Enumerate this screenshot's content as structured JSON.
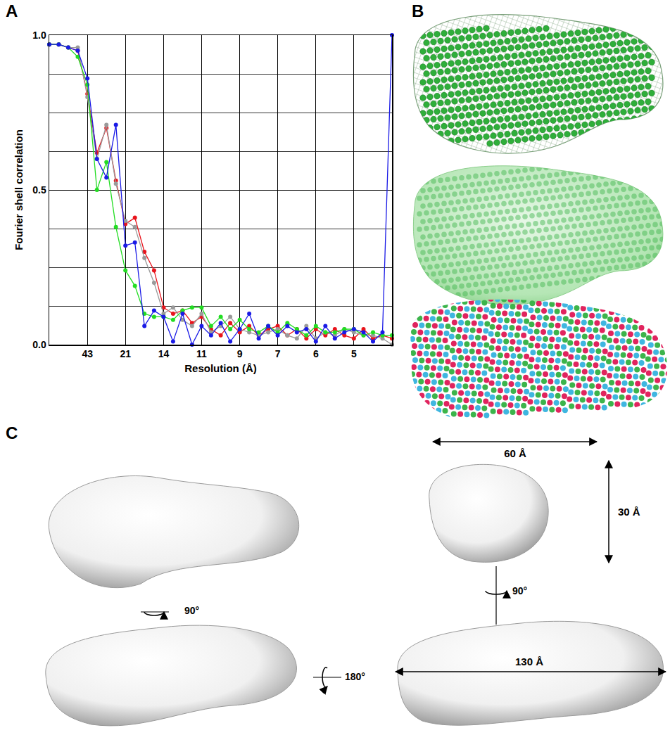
{
  "chart_data": {
    "type": "line",
    "xlabel": "Resolution (Å)",
    "ylabel": "Fourier shell correlation",
    "x": [
      0,
      0.0058,
      0.0116,
      0.0174,
      0.0233,
      0.0291,
      0.0349,
      0.0407,
      0.0465,
      0.0523,
      0.0581,
      0.064,
      0.0698,
      0.0756,
      0.0814,
      0.0872,
      0.093,
      0.0988,
      0.1047,
      0.1105,
      0.1163,
      0.1221,
      0.1279,
      0.1337,
      0.1395,
      0.1454,
      0.1512,
      0.157,
      0.1628,
      0.1686,
      0.1744,
      0.1802,
      0.186,
      0.1919,
      0.1977,
      0.2035,
      0.2093
    ],
    "series": [
      {
        "color": "#e8141c",
        "values": [
          0.97,
          0.97,
          0.96,
          0.95,
          0.81,
          0.62,
          0.7,
          0.53,
          0.39,
          0.41,
          0.3,
          0.24,
          0.12,
          0.1,
          0.11,
          0.07,
          0.09,
          0.05,
          0.03,
          0.07,
          0.04,
          0.06,
          0.03,
          0.05,
          0.06,
          0.03,
          0.05,
          0.02,
          0.05,
          0.03,
          0.05,
          0.03,
          0.02,
          0.05,
          0.02,
          0.03,
          0.02
        ]
      },
      {
        "color": "#9a9a9a",
        "values": [
          0.97,
          0.97,
          0.96,
          0.96,
          0.8,
          0.6,
          0.71,
          0.52,
          0.4,
          0.38,
          0.28,
          0.2,
          0.1,
          0.12,
          0.08,
          0.06,
          0.1,
          0.04,
          0.06,
          0.09,
          0.05,
          0.04,
          0.03,
          0.04,
          0.05,
          0.03,
          0.02,
          0.06,
          0.02,
          0.04,
          0.03,
          0.05,
          0.04,
          0.03,
          0.03,
          0.02,
          0.0
        ]
      },
      {
        "color": "#22dd22",
        "values": [
          0.97,
          0.97,
          0.96,
          0.93,
          0.84,
          0.5,
          0.59,
          0.38,
          0.24,
          0.19,
          0.1,
          0.09,
          0.09,
          0.08,
          0.11,
          0.12,
          0.12,
          0.06,
          0.09,
          0.05,
          0.08,
          0.05,
          0.04,
          0.06,
          0.04,
          0.07,
          0.05,
          0.03,
          0.06,
          0.04,
          0.04,
          0.05,
          0.05,
          0.03,
          0.04,
          0.03,
          0.03
        ]
      },
      {
        "color": "#1a1ae6",
        "values": [
          0.97,
          0.97,
          0.96,
          0.95,
          0.86,
          0.6,
          0.54,
          0.71,
          0.32,
          0.33,
          0.06,
          0.11,
          0.09,
          0.01,
          0.1,
          0.0,
          0.06,
          0.03,
          0.07,
          0.01,
          0.05,
          0.1,
          0.02,
          0.06,
          0.03,
          0.06,
          0.04,
          0.05,
          0.01,
          0.06,
          0.02,
          0.04,
          0.05,
          0.04,
          0.01,
          0.04,
          1.0
        ]
      }
    ],
    "marker": "circle",
    "xlim": [
      0,
      0.2093
    ],
    "xticks": [
      {
        "value": 0.0233,
        "label": "43"
      },
      {
        "value": 0.0465,
        "label": "21"
      },
      {
        "value": 0.0698,
        "label": "14"
      },
      {
        "value": 0.093,
        "label": "11"
      },
      {
        "value": 0.1163,
        "label": "9"
      },
      {
        "value": 0.1395,
        "label": "7"
      },
      {
        "value": 0.1628,
        "label": "6"
      },
      {
        "value": 0.186,
        "label": "5"
      }
    ],
    "ylim": [
      0,
      1
    ],
    "yticks": [
      {
        "value": 0,
        "label": "0.0"
      },
      0.5,
      {
        "value": 1,
        "label": "1.0"
      }
    ],
    "grid": true
  },
  "panel_labels": [
    "A",
    "B",
    "C"
  ],
  "panel_c": {
    "rotations": [
      "90°",
      "90°",
      "180°"
    ],
    "dimensions": [
      "60 Å",
      "30 Å",
      "130 Å"
    ]
  }
}
